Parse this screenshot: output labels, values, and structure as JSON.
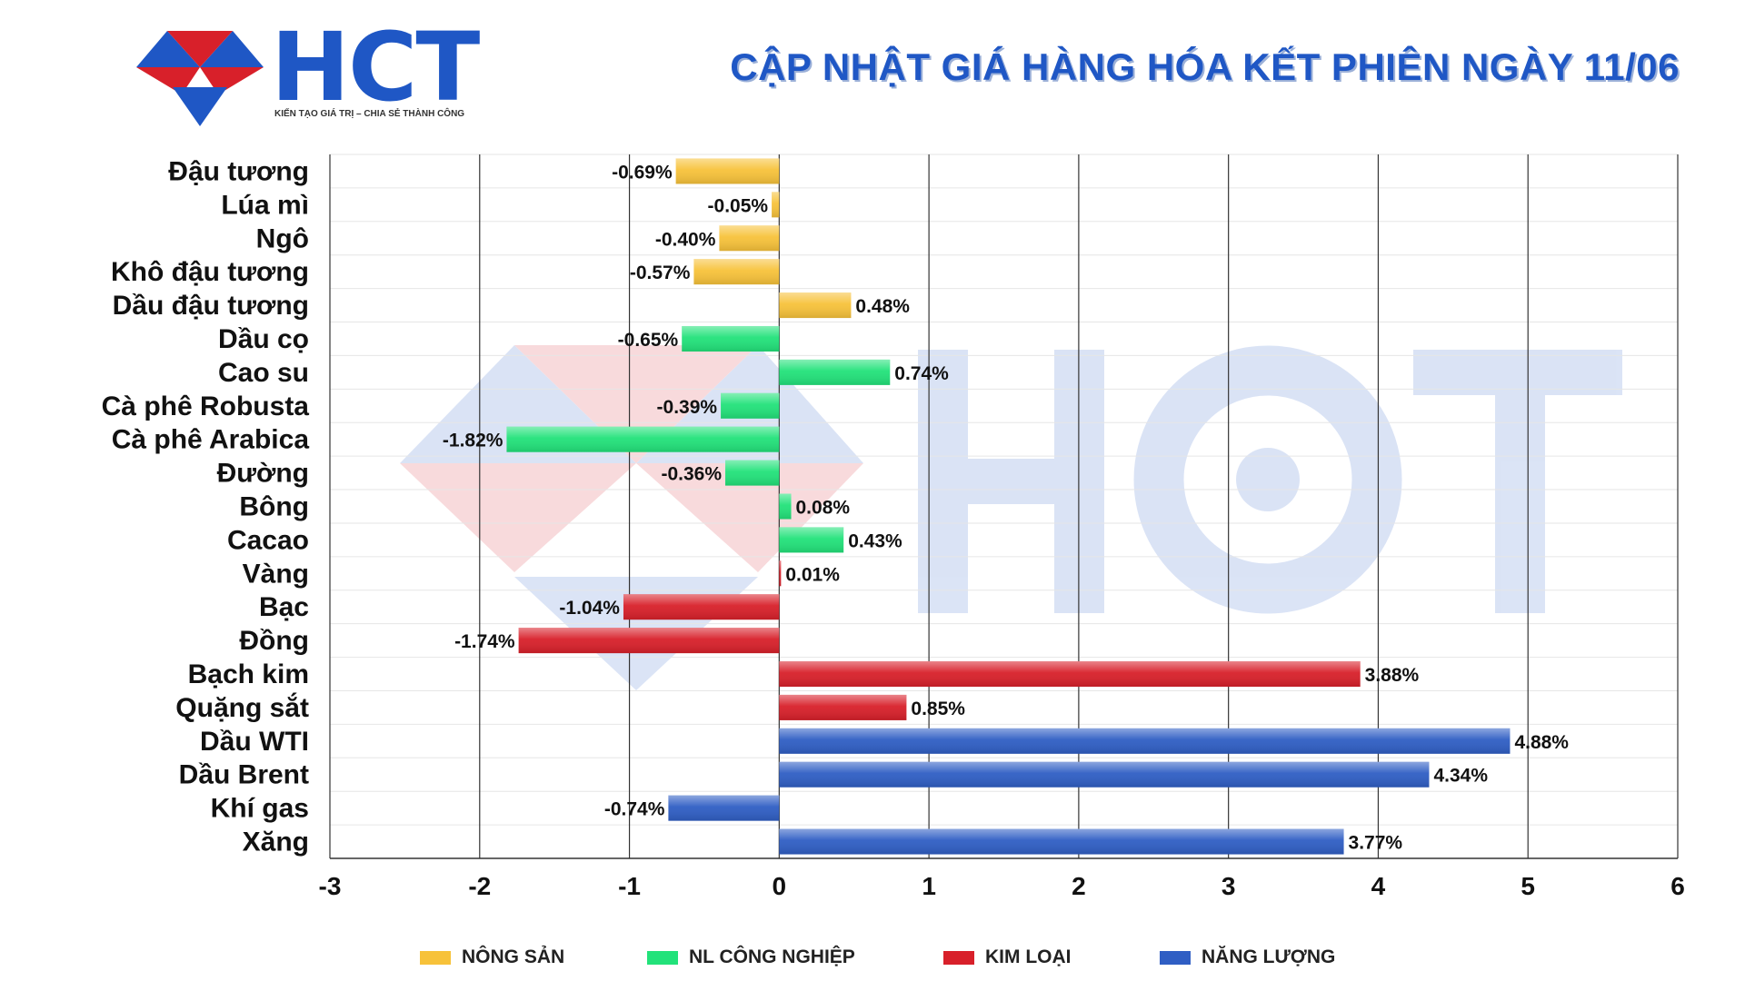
{
  "header": {
    "logo_text": "HCT",
    "tagline": "KIẾN TẠO GIÁ TRỊ – CHIA SẺ THÀNH CÔNG",
    "title": "CẬP NHẬT GIÁ HÀNG HÓA KẾT PHIÊN NGÀY 11/06"
  },
  "colors": {
    "nong_san": "#f7c23a",
    "nl_cong_nghiep": "#22e27a",
    "kim_loai": "#d8202a",
    "nang_luong": "#2f5ec4",
    "brand": "#1f57c5"
  },
  "chart_data": {
    "type": "bar",
    "orientation": "horizontal",
    "title": "",
    "xlabel": "",
    "ylabel": "",
    "xlim": [
      -3,
      6
    ],
    "x_ticks": [
      "-3",
      "-2",
      "-1",
      "0",
      "1",
      "2",
      "3",
      "4",
      "5",
      "6"
    ],
    "grid": true,
    "legend_position": "bottom",
    "legend": [
      {
        "name": "NÔNG SẢN",
        "color": "#f7c23a"
      },
      {
        "name": "NL CÔNG NGHIỆP",
        "color": "#22e27a"
      },
      {
        "name": "KIM LOẠI",
        "color": "#d8202a"
      },
      {
        "name": "NĂNG LƯỢNG",
        "color": "#2f5ec4"
      }
    ],
    "bars": [
      {
        "category": "Đậu tương",
        "value": -0.69,
        "label": "-0.69%",
        "group": 0
      },
      {
        "category": "Lúa mì",
        "value": -0.05,
        "label": "-0.05%",
        "group": 0
      },
      {
        "category": "Ngô",
        "value": -0.4,
        "label": "-0.40%",
        "group": 0
      },
      {
        "category": "Khô đậu tương",
        "value": -0.57,
        "label": "-0.57%",
        "group": 0
      },
      {
        "category": "Dầu đậu tương",
        "value": 0.48,
        "label": "0.48%",
        "group": 0
      },
      {
        "category": "Dầu cọ",
        "value": -0.65,
        "label": "-0.65%",
        "group": 1
      },
      {
        "category": "Cao su",
        "value": 0.74,
        "label": "0.74%",
        "group": 1
      },
      {
        "category": "Cà phê Robusta",
        "value": -0.39,
        "label": "-0.39%",
        "group": 1
      },
      {
        "category": "Cà phê Arabica",
        "value": -1.82,
        "label": "-1.82%",
        "group": 1
      },
      {
        "category": "Đường",
        "value": -0.36,
        "label": "-0.36%",
        "group": 1
      },
      {
        "category": "Bông",
        "value": 0.08,
        "label": "0.08%",
        "group": 1
      },
      {
        "category": "Cacao",
        "value": 0.43,
        "label": "0.43%",
        "group": 1
      },
      {
        "category": "Vàng",
        "value": 0.01,
        "label": "0.01%",
        "group": 2
      },
      {
        "category": "Bạc",
        "value": -1.04,
        "label": "-1.04%",
        "group": 2
      },
      {
        "category": "Đồng",
        "value": -1.74,
        "label": "-1.74%",
        "group": 2
      },
      {
        "category": "Bạch kim",
        "value": 3.88,
        "label": "3.88%",
        "group": 2
      },
      {
        "category": "Quặng sắt",
        "value": 0.85,
        "label": "0.85%",
        "group": 2
      },
      {
        "category": "Dầu WTI",
        "value": 4.88,
        "label": "4.88%",
        "group": 3
      },
      {
        "category": "Dầu Brent",
        "value": 4.34,
        "label": "4.34%",
        "group": 3
      },
      {
        "category": "Khí gas",
        "value": -0.74,
        "label": "-0.74%",
        "group": 3
      },
      {
        "category": "Xăng",
        "value": 3.77,
        "label": "3.77%",
        "group": 3
      }
    ]
  }
}
